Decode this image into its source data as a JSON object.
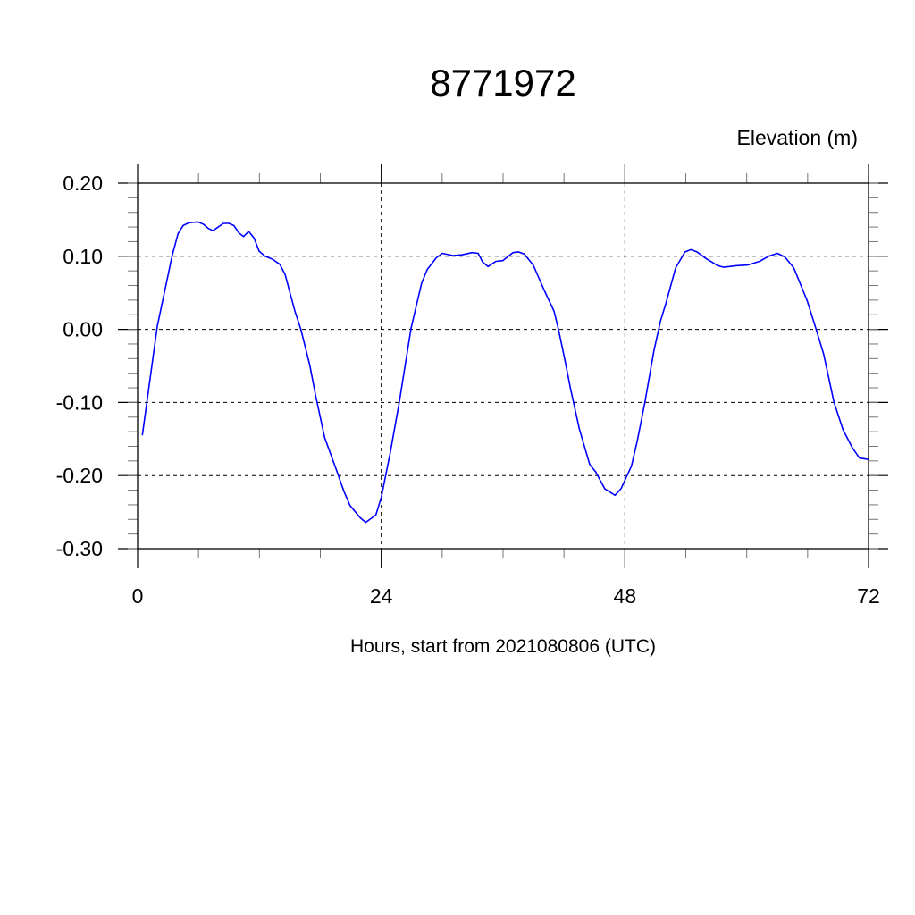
{
  "chart_data": {
    "type": "line",
    "title": "8771972",
    "ylabel": "Elevation (m)",
    "xlabel": "Hours, start from 2021080806 (UTC)",
    "xlim": [
      0,
      72
    ],
    "ylim": [
      -0.3,
      0.2
    ],
    "xticks": [
      0,
      24,
      48,
      72
    ],
    "xtick_labels": [
      "0",
      "24",
      "48",
      "72"
    ],
    "yticks": [
      0.2,
      0.1,
      0.0,
      -0.1,
      -0.2,
      -0.3
    ],
    "ytick_labels": [
      "0.20",
      "0.10",
      "0.00",
      "-0.10",
      "-0.20",
      "-0.30"
    ],
    "grid": true,
    "series": [
      {
        "name": "Elevation",
        "color": "#0000ff",
        "x": [
          0.47,
          1.94,
          3.41,
          3.99,
          4.49,
          5.08,
          5.96,
          6.45,
          6.98,
          7.42,
          8.45,
          8.98,
          9.48,
          9.97,
          10.44,
          10.94,
          11.47,
          11.97,
          12.56,
          13.29,
          14.0,
          14.53,
          15.49,
          16.08,
          16.96,
          17.54,
          18.42,
          19.6,
          20.33,
          20.92,
          21.94,
          22.47,
          23.47,
          24.0,
          24.88,
          25.77,
          26.94,
          27.97,
          28.54,
          29.43,
          30.02,
          31.05,
          31.93,
          32.95,
          33.54,
          33.98,
          34.51,
          35.3,
          35.97,
          36.97,
          37.5,
          38.09,
          38.97,
          40.14,
          41.02,
          41.46,
          42.05,
          42.63,
          43.51,
          44.54,
          45.13,
          46.01,
          47.03,
          47.62,
          48.65,
          49.23,
          49.97,
          50.85,
          51.52,
          52.03,
          53.0,
          53.92,
          54.5,
          55.1,
          55.99,
          57.16,
          57.75,
          58.92,
          60.1,
          61.27,
          62.15,
          63.03,
          63.76,
          64.64,
          65.96,
          66.84,
          67.58,
          68.6,
          69.48,
          70.36,
          71.1,
          71.98
        ],
        "y": [
          -0.145,
          0.004,
          0.101,
          0.131,
          0.142,
          0.146,
          0.147,
          0.144,
          0.138,
          0.135,
          0.145,
          0.145,
          0.142,
          0.132,
          0.127,
          0.134,
          0.125,
          0.107,
          0.1,
          0.096,
          0.089,
          0.075,
          0.025,
          0.0,
          -0.049,
          -0.091,
          -0.148,
          -0.193,
          -0.222,
          -0.241,
          -0.258,
          -0.264,
          -0.254,
          -0.23,
          -0.169,
          -0.1,
          0.002,
          0.063,
          0.082,
          0.098,
          0.104,
          0.101,
          0.102,
          0.105,
          0.104,
          0.092,
          0.086,
          0.093,
          0.094,
          0.105,
          0.106,
          0.103,
          0.088,
          0.051,
          0.025,
          0.0,
          -0.039,
          -0.08,
          -0.136,
          -0.185,
          -0.195,
          -0.218,
          -0.227,
          -0.218,
          -0.187,
          -0.152,
          -0.1,
          -0.03,
          0.012,
          0.035,
          0.084,
          0.106,
          0.109,
          0.106,
          0.097,
          0.087,
          0.085,
          0.087,
          0.088,
          0.093,
          0.1,
          0.104,
          0.099,
          0.084,
          0.039,
          0.0,
          -0.034,
          -0.1,
          -0.137,
          -0.161,
          -0.176,
          -0.178
        ]
      }
    ]
  }
}
